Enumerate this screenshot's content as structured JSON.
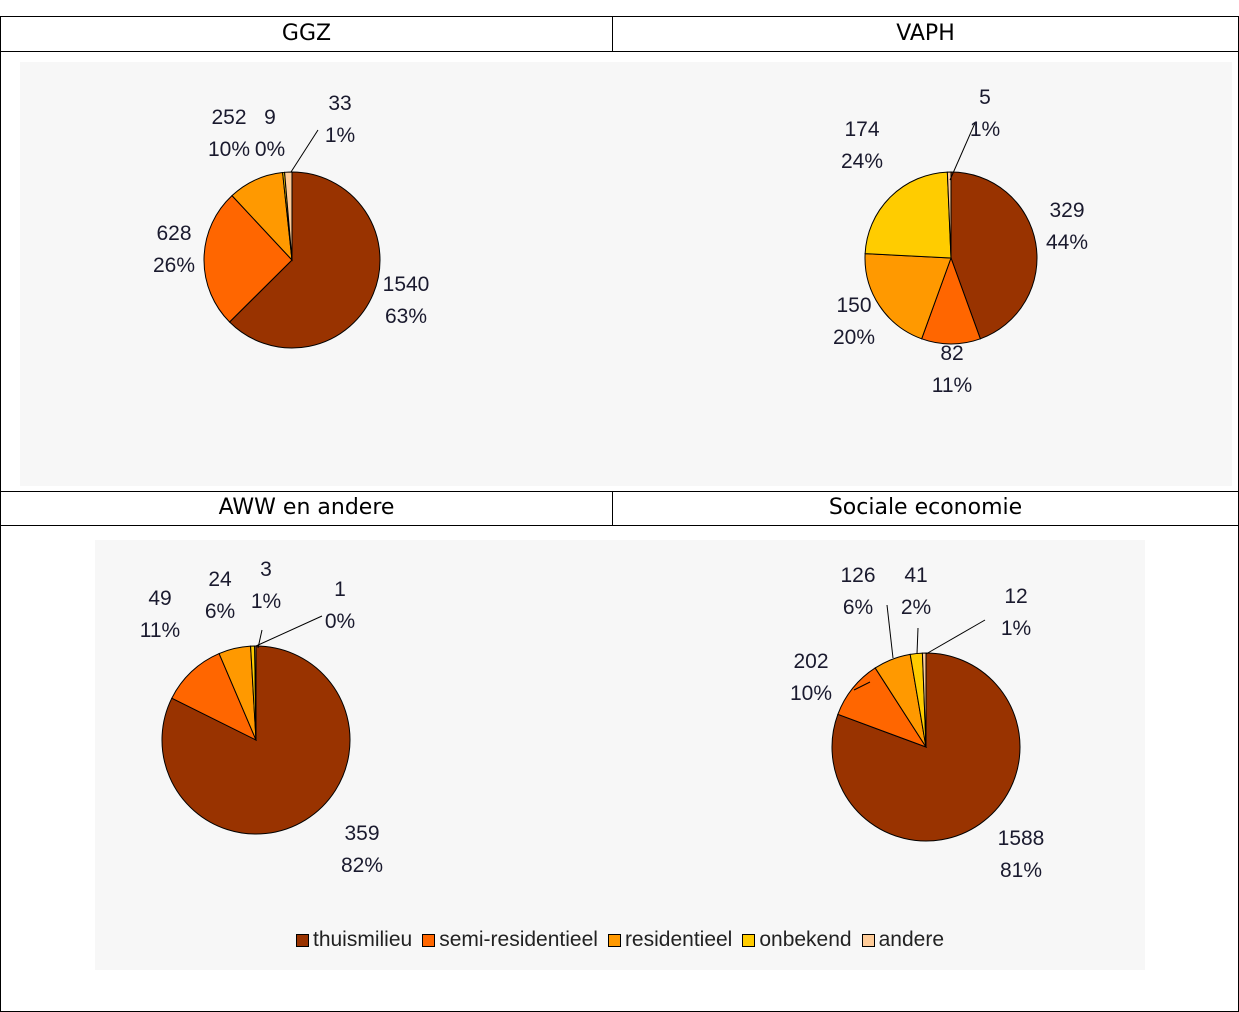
{
  "headers": [
    "GGZ",
    "VAPH",
    "AWW en andere",
    "Sociale economie"
  ],
  "colors": {
    "thuismilieu": "#993300",
    "semi-residentieel": "#ff6600",
    "residentieel": "#ff9900",
    "onbekend": "#ffcc00",
    "andere": "#ffcc99"
  },
  "legend": [
    "thuismilieu",
    "semi-residentieel",
    "residentieel",
    "onbekend",
    "andere"
  ],
  "chart_data": [
    {
      "type": "pie",
      "title": "GGZ",
      "categories": [
        "thuismilieu",
        "semi-residentieel",
        "residentieel",
        "onbekend",
        "andere"
      ],
      "values": [
        1540,
        628,
        252,
        9,
        33
      ],
      "labels": [
        {
          "value": "1540",
          "pct": "63%"
        },
        {
          "value": "628",
          "pct": "26%"
        },
        {
          "value": "252",
          "pct": "10%"
        },
        {
          "value": "9",
          "pct": "0%"
        },
        {
          "value": "33",
          "pct": "1%"
        }
      ]
    },
    {
      "type": "pie",
      "title": "VAPH",
      "categories": [
        "thuismilieu",
        "semi-residentieel",
        "residentieel",
        "onbekend",
        "andere"
      ],
      "values": [
        329,
        82,
        150,
        174,
        5
      ],
      "labels": [
        {
          "value": "329",
          "pct": "44%"
        },
        {
          "value": "82",
          "pct": "11%"
        },
        {
          "value": "150",
          "pct": "20%"
        },
        {
          "value": "174",
          "pct": "24%"
        },
        {
          "value": "5",
          "pct": "1%"
        }
      ]
    },
    {
      "type": "pie",
      "title": "AWW en andere",
      "categories": [
        "thuismilieu",
        "semi-residentieel",
        "residentieel",
        "onbekend",
        "andere"
      ],
      "values": [
        359,
        49,
        24,
        3,
        1
      ],
      "labels": [
        {
          "value": "359",
          "pct": "82%"
        },
        {
          "value": "49",
          "pct": "11%"
        },
        {
          "value": "24",
          "pct": "6%"
        },
        {
          "value": "3",
          "pct": "1%"
        },
        {
          "value": "1",
          "pct": "0%"
        }
      ]
    },
    {
      "type": "pie",
      "title": "Sociale economie",
      "categories": [
        "thuismilieu",
        "semi-residentieel",
        "residentieel",
        "onbekend",
        "andere"
      ],
      "values": [
        1588,
        202,
        126,
        41,
        12
      ],
      "labels": [
        {
          "value": "1588",
          "pct": "81%"
        },
        {
          "value": "202",
          "pct": "10%"
        },
        {
          "value": "126",
          "pct": "6%"
        },
        {
          "value": "41",
          "pct": "2%"
        },
        {
          "value": "12",
          "pct": "1%"
        }
      ]
    }
  ]
}
